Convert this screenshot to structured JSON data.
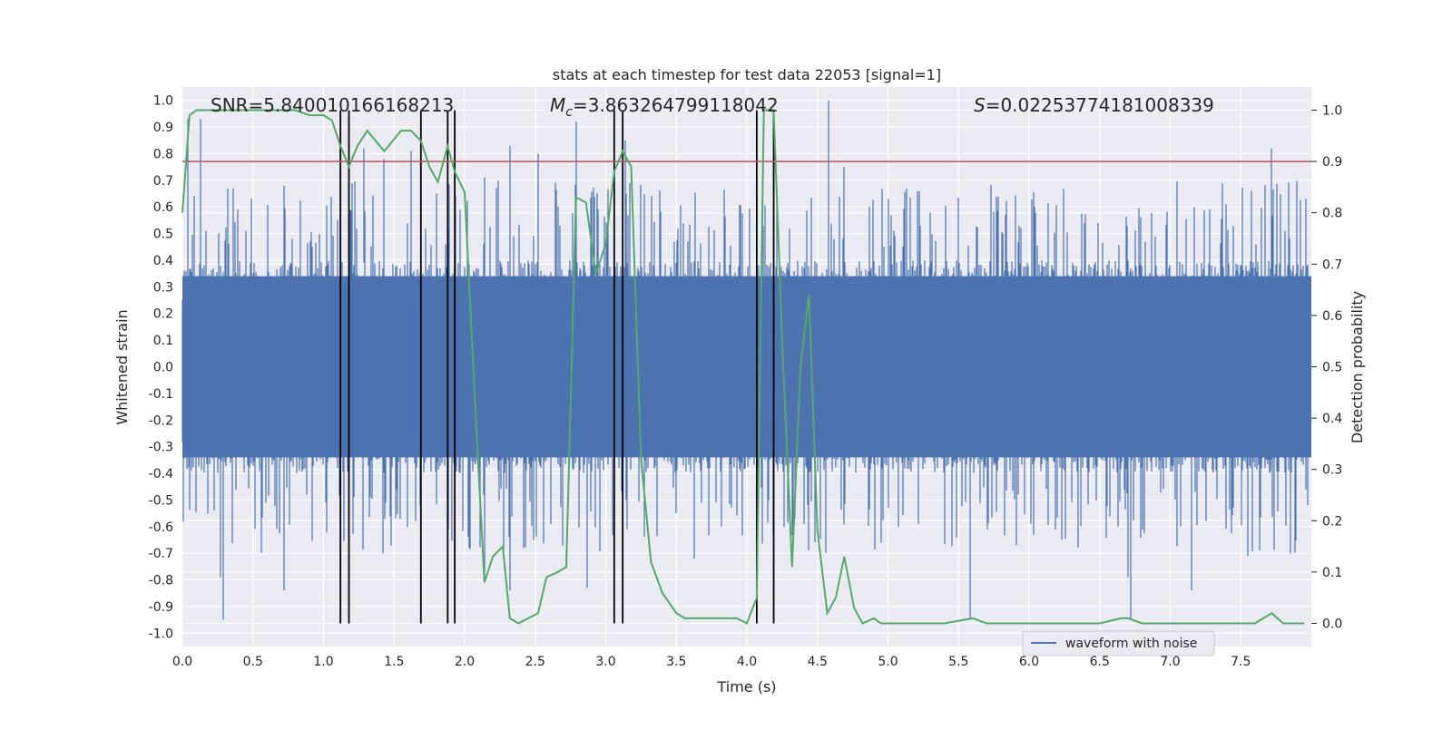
{
  "chart_data": {
    "type": "line",
    "title": "stats at each timestep for test data 22053 [signal=1]",
    "xlabel": "Time (s)",
    "ylabel": "Whitened strain",
    "ylabel_right": "Detection probability",
    "xlim": [
      0.0,
      8.0
    ],
    "ylim": [
      -1.05,
      1.05
    ],
    "ylim_right": [
      -0.045,
      1.045
    ],
    "x_ticks": [
      "0.0",
      "0.5",
      "1.0",
      "1.5",
      "2.0",
      "2.5",
      "3.0",
      "3.5",
      "4.0",
      "4.5",
      "5.0",
      "5.5",
      "6.0",
      "6.5",
      "7.0",
      "7.5"
    ],
    "y_ticks": [
      "1.0",
      "0.9",
      "0.8",
      "0.7",
      "0.6",
      "0.5",
      "0.4",
      "0.3",
      "0.2",
      "0.1",
      "0.0",
      "-0.1",
      "-0.2",
      "-0.3",
      "-0.4",
      "-0.5",
      "-0.6",
      "-0.7",
      "-0.8",
      "-0.9",
      "-1.0"
    ],
    "y_ticks_right": [
      "1.0",
      "0.9",
      "0.8",
      "0.7",
      "0.6",
      "0.5",
      "0.4",
      "0.3",
      "0.2",
      "0.1",
      "0.0"
    ],
    "grid": true,
    "legend": {
      "placement": "lower-center-right",
      "entries": [
        "waveform with noise"
      ]
    },
    "annotations": {
      "snr": "SNR=5.840010166168213",
      "mc_symbol": "M",
      "mc_sub": "c",
      "mc_value": "=3.863264799118042",
      "s_symbol": "S",
      "s_value": "=0.02253774181008339"
    },
    "threshold_right": 0.9,
    "vertical_markers": [
      1.12,
      1.18,
      1.69,
      1.88,
      1.93,
      3.06,
      3.12,
      4.07,
      4.19
    ],
    "series": [
      {
        "name": "waveform with noise",
        "color": "#4c72b0",
        "axis": "left",
        "envelope": {
          "typical_abs": 0.4,
          "peak_x": [
            0.04,
            0.13,
            0.36,
            0.72,
            1.12,
            1.43,
            1.62,
            2.14,
            2.32,
            2.52,
            2.79,
            2.87,
            3.14,
            4.07,
            4.58,
            4.69,
            5.58,
            6.72,
            7.72
          ],
          "peak_y": [
            0.93,
            0.93,
            0.67,
            0.68,
            0.74,
            0.78,
            0.81,
            0.71,
            0.83,
            0.8,
            0.92,
            -0.83,
            0.85,
            0.64,
            1.0,
            0.75,
            -0.95,
            -0.95,
            0.82
          ],
          "neg_peak_x": [
            0.27,
            0.72,
            1.42,
            2.14,
            2.32,
            3.63,
            5.58,
            6.72,
            7.55
          ],
          "neg_peak_y": [
            -0.79,
            -0.84,
            -0.7,
            -0.79,
            -0.84,
            -0.72,
            -0.95,
            -0.95,
            -0.71
          ]
        }
      },
      {
        "name": "",
        "color": "#55a868",
        "axis": "right",
        "x": [
          0.0,
          0.05,
          0.1,
          0.2,
          0.4,
          0.6,
          0.8,
          0.9,
          1.0,
          1.06,
          1.12,
          1.18,
          1.24,
          1.31,
          1.43,
          1.55,
          1.62,
          1.69,
          1.75,
          1.81,
          1.88,
          1.93,
          2.0,
          2.07,
          2.14,
          2.2,
          2.27,
          2.32,
          2.38,
          2.45,
          2.52,
          2.58,
          2.66,
          2.72,
          2.79,
          2.86,
          2.93,
          3.0,
          3.06,
          3.12,
          3.18,
          3.25,
          3.32,
          3.4,
          3.5,
          3.56,
          3.8,
          3.93,
          4.0,
          4.07,
          4.12,
          4.19,
          4.25,
          4.32,
          4.38,
          4.44,
          4.5,
          4.57,
          4.63,
          4.69,
          4.76,
          4.82,
          4.9,
          4.95,
          5.0,
          5.2,
          5.4,
          5.6,
          5.7,
          6.0,
          6.3,
          6.5,
          6.65,
          6.7,
          6.8,
          7.0,
          7.3,
          7.6,
          7.72,
          7.8,
          7.95
        ],
        "y": [
          0.8,
          0.99,
          1.0,
          1.0,
          1.0,
          1.0,
          1.0,
          0.99,
          0.99,
          0.98,
          0.93,
          0.89,
          0.93,
          0.96,
          0.92,
          0.96,
          0.96,
          0.94,
          0.89,
          0.86,
          0.93,
          0.88,
          0.84,
          0.45,
          0.08,
          0.13,
          0.15,
          0.01,
          0.0,
          0.01,
          0.02,
          0.09,
          0.1,
          0.11,
          0.83,
          0.82,
          0.68,
          0.74,
          0.88,
          0.92,
          0.89,
          0.32,
          0.12,
          0.06,
          0.02,
          0.01,
          0.01,
          0.01,
          0.0,
          0.05,
          1.0,
          1.0,
          0.55,
          0.11,
          0.5,
          0.64,
          0.18,
          0.02,
          0.05,
          0.13,
          0.03,
          0.0,
          0.01,
          0.0,
          0.0,
          0.0,
          0.0,
          0.01,
          0.0,
          0.0,
          0.0,
          0.0,
          0.01,
          0.01,
          0.0,
          0.0,
          0.0,
          0.0,
          0.02,
          0.0,
          0.0
        ]
      }
    ]
  }
}
